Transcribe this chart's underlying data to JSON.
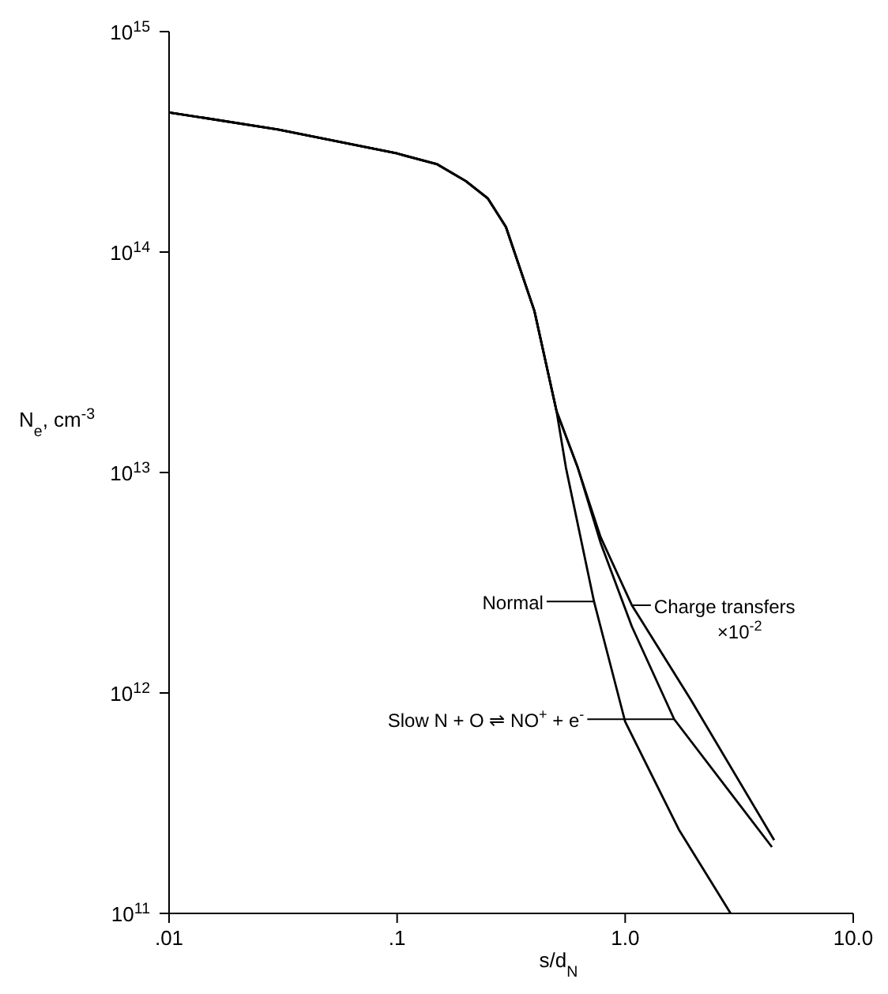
{
  "chart_data": {
    "type": "line",
    "xlabel": "s/d$_{N}$",
    "ylabel": "N$_{e}$, cm$^{-3}$",
    "log": "xy",
    "legend": "right",
    "marker": "none",
    "line_style": "solid",
    "xlim": [
      0.01,
      10
    ],
    "xticks": [
      {
        "value": 0.01,
        "label": ".01"
      },
      {
        "value": 0.1,
        "label": ".1"
      },
      {
        "value": 1,
        "label": "1.0"
      },
      {
        "value": 10,
        "label": "10.0"
      }
    ],
    "ylim": [
      100000000000.0,
      1000000000000000.0
    ],
    "yticks": [
      {
        "value": 100000000000.0,
        "label": "10$^{11}$"
      },
      {
        "value": 1000000000000.0,
        "label": "10$^{12}$"
      },
      {
        "value": 10000000000000.0,
        "label": "10$^{13}$"
      },
      {
        "value": 100000000000000.0,
        "label": "10$^{14}$"
      },
      {
        "value": 1000000000000000.0,
        "label": "10$^{15}$"
      }
    ],
    "series": [
      {
        "name": "Normal",
        "color": "#000000",
        "x": [
          0.01,
          0.03,
          0.1,
          0.15,
          0.2,
          0.25,
          0.3,
          0.4,
          0.5,
          0.55,
          0.73,
          1.0,
          1.72,
          2.9
        ],
        "values": [
          430000000000000.0,
          360000000000000.0,
          280000000000000.0,
          250000000000000.0,
          210000000000000.0,
          175000000000000.0,
          130000000000000.0,
          54000000000000.0,
          19000000000000.0,
          10500000000000.0,
          2600000000000.0,
          740000000000.0,
          240000000000.0,
          100000000000.0
        ]
      },
      {
        "name": "Charge transfers ×10$^{-2}$",
        "color": "#000000",
        "x": [
          0.01,
          0.03,
          0.1,
          0.15,
          0.2,
          0.25,
          0.3,
          0.4,
          0.5,
          0.62,
          0.78,
          1.07,
          1.93,
          4.5
        ],
        "values": [
          430000000000000.0,
          360000000000000.0,
          280000000000000.0,
          250000000000000.0,
          210000000000000.0,
          175000000000000.0,
          130000000000000.0,
          54000000000000.0,
          19000000000000.0,
          10500000000000.0,
          5100000000000.0,
          2500000000000.0,
          940000000000.0,
          215000000000.0
        ]
      },
      {
        "name": "Slow N + O ⇌ NO$^{+}$ + e$^{-}$",
        "color": "#000000",
        "x": [
          0.01,
          0.03,
          0.1,
          0.15,
          0.2,
          0.25,
          0.3,
          0.4,
          0.5,
          0.62,
          0.78,
          1.07,
          1.64,
          4.4
        ],
        "values": [
          430000000000000.0,
          360000000000000.0,
          280000000000000.0,
          250000000000000.0,
          210000000000000.0,
          175000000000000.0,
          130000000000000.0,
          54000000000000.0,
          19000000000000.0,
          10500000000000.0,
          4800000000000.0,
          2000000000000.0,
          760000000000.0,
          200000000000.0
        ]
      }
    ]
  }
}
